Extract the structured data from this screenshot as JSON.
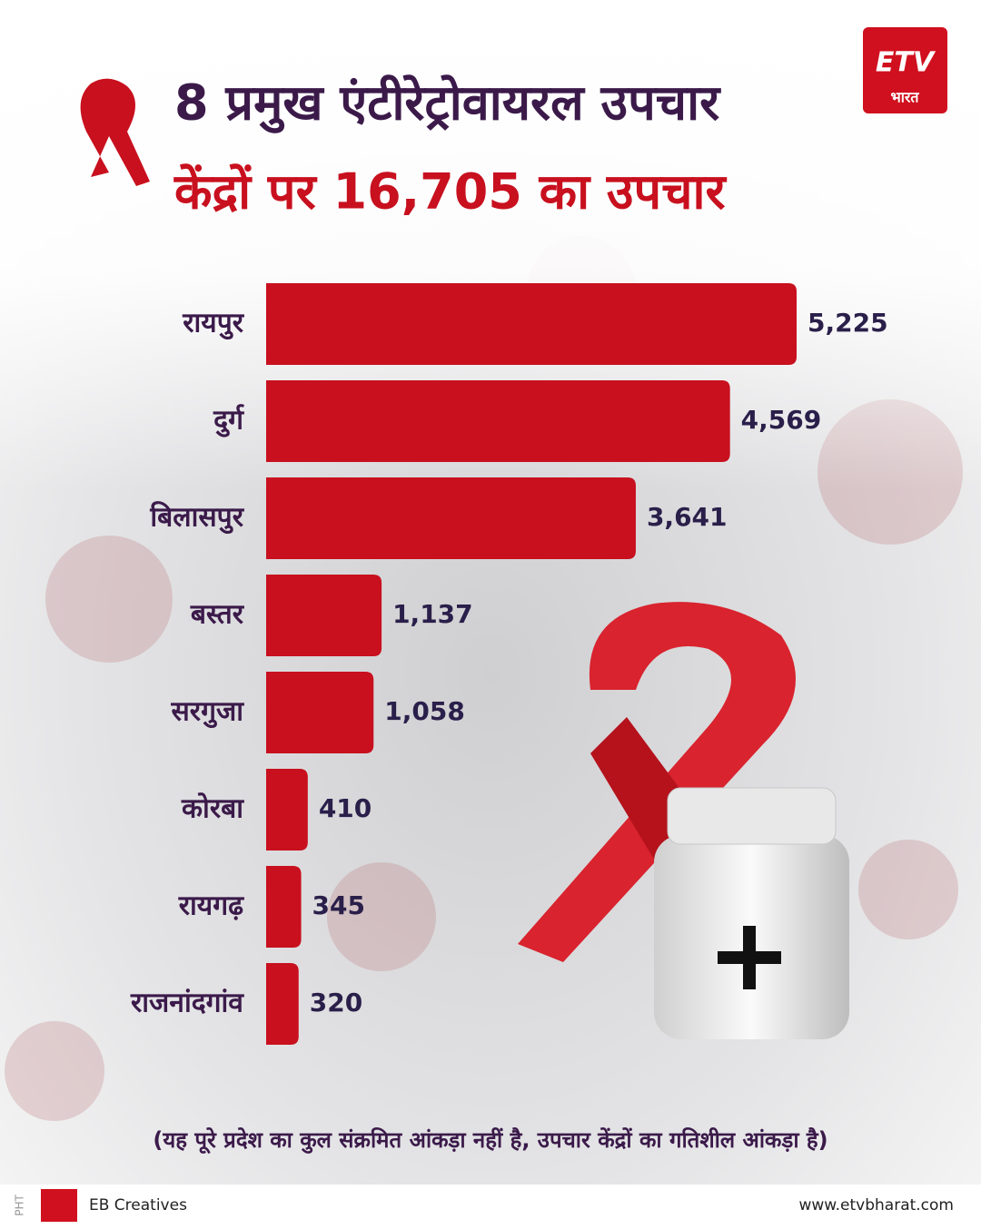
{
  "brand": {
    "logo": "ETV",
    "logo_sub": "भारत",
    "footer_code": "PHT",
    "creatives": "EB Creatives",
    "website": "www.etvbharat.com"
  },
  "chart_data": {
    "type": "bar",
    "orientation": "horizontal",
    "title": "8 प्रमुख एंटीरेट्रोवायरल उपचार",
    "subtitle": "केंद्रों पर 16,705 का उपचार",
    "categories": [
      "रायपुर",
      "दुर्ग",
      "बिलासपुर",
      "बस्तर",
      "सरगुजा",
      "कोरबा",
      "रायगढ़",
      "राजनांदगांव"
    ],
    "values": [
      5225,
      4569,
      3641,
      1137,
      1058,
      410,
      345,
      320
    ],
    "value_labels": [
      "5,225",
      "4,569",
      "3,641",
      "1,137",
      "1,058",
      "410",
      "345",
      "320"
    ],
    "color": "#c8101e",
    "note": "(यह पूरे प्रदेश का कुल संक्रमित आंकड़ा नहीं है, उपचार केंद्रों का गतिशील आंकड़ा है)"
  }
}
